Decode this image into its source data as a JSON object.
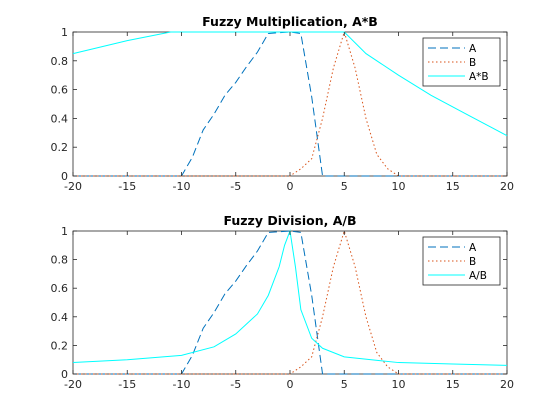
{
  "chart_data": [
    {
      "type": "line",
      "title": "Fuzzy Multiplication, A*B",
      "xlabel": "",
      "ylabel": "",
      "xlim": [
        -20,
        20
      ],
      "ylim": [
        0,
        1
      ],
      "xticks": [
        -20,
        -15,
        -10,
        -5,
        0,
        5,
        10,
        15,
        20
      ],
      "yticks": [
        0,
        0.2,
        0.4,
        0.6,
        0.8,
        1
      ],
      "grid": false,
      "legend_position": "top-right",
      "series": [
        {
          "name": "A",
          "color": "#0072BD",
          "style": "dashed",
          "points": [
            [
              -20,
              0
            ],
            [
              -10,
              0
            ],
            [
              -9,
              0.13
            ],
            [
              -8,
              0.32
            ],
            [
              -7,
              0.43
            ],
            [
              -6,
              0.56
            ],
            [
              -5,
              0.65
            ],
            [
              -4,
              0.76
            ],
            [
              -3,
              0.86
            ],
            [
              -2,
              0.99
            ],
            [
              0,
              1
            ],
            [
              1,
              0.99
            ],
            [
              2,
              0.55
            ],
            [
              3,
              0
            ],
            [
              20,
              0
            ]
          ]
        },
        {
          "name": "B",
          "color": "#D95319",
          "style": "dotted",
          "points": [
            [
              -20,
              0
            ],
            [
              0,
              0
            ],
            [
              1,
              0.05
            ],
            [
              2,
              0.12
            ],
            [
              3,
              0.4
            ],
            [
              4,
              0.75
            ],
            [
              5,
              1
            ],
            [
              6,
              0.75
            ],
            [
              7,
              0.4
            ],
            [
              8,
              0.15
            ],
            [
              9,
              0.05
            ],
            [
              10,
              0
            ],
            [
              20,
              0
            ]
          ]
        },
        {
          "name": "A*B",
          "color": "#00FFFF",
          "style": "solid",
          "points": [
            [
              -20,
              0.85
            ],
            [
              -15,
              0.94
            ],
            [
              -11,
              1
            ],
            [
              0,
              1
            ],
            [
              5,
              1
            ],
            [
              7,
              0.85
            ],
            [
              10,
              0.7
            ],
            [
              13,
              0.56
            ],
            [
              16,
              0.44
            ],
            [
              18,
              0.36
            ],
            [
              20,
              0.28
            ]
          ]
        }
      ]
    },
    {
      "type": "line",
      "title": "Fuzzy Division, A/B",
      "xlabel": "",
      "ylabel": "",
      "xlim": [
        -20,
        20
      ],
      "ylim": [
        0,
        1
      ],
      "xticks": [
        -20,
        -15,
        -10,
        -5,
        0,
        5,
        10,
        15,
        20
      ],
      "yticks": [
        0,
        0.2,
        0.4,
        0.6,
        0.8,
        1
      ],
      "grid": false,
      "legend_position": "top-right",
      "series": [
        {
          "name": "A",
          "color": "#0072BD",
          "style": "dashed",
          "points": [
            [
              -20,
              0
            ],
            [
              -10,
              0
            ],
            [
              -9,
              0.13
            ],
            [
              -8,
              0.32
            ],
            [
              -7,
              0.43
            ],
            [
              -6,
              0.56
            ],
            [
              -5,
              0.65
            ],
            [
              -4,
              0.76
            ],
            [
              -3,
              0.86
            ],
            [
              -2,
              0.99
            ],
            [
              0,
              1
            ],
            [
              1,
              0.99
            ],
            [
              2,
              0.55
            ],
            [
              3,
              0
            ],
            [
              20,
              0
            ]
          ]
        },
        {
          "name": "B",
          "color": "#D95319",
          "style": "dotted",
          "points": [
            [
              -20,
              0
            ],
            [
              0,
              0
            ],
            [
              1,
              0.05
            ],
            [
              2,
              0.12
            ],
            [
              3,
              0.4
            ],
            [
              4,
              0.75
            ],
            [
              5,
              1
            ],
            [
              6,
              0.75
            ],
            [
              7,
              0.4
            ],
            [
              8,
              0.15
            ],
            [
              9,
              0.05
            ],
            [
              10,
              0
            ],
            [
              20,
              0
            ]
          ]
        },
        {
          "name": "A/B",
          "color": "#00FFFF",
          "style": "solid",
          "points": [
            [
              -20,
              0.08
            ],
            [
              -15,
              0.1
            ],
            [
              -10,
              0.13
            ],
            [
              -7,
              0.19
            ],
            [
              -5,
              0.28
            ],
            [
              -3,
              0.42
            ],
            [
              -2,
              0.55
            ],
            [
              -1,
              0.75
            ],
            [
              -0.5,
              0.9
            ],
            [
              0,
              1
            ],
            [
              0.5,
              0.75
            ],
            [
              1,
              0.45
            ],
            [
              2,
              0.25
            ],
            [
              3,
              0.18
            ],
            [
              5,
              0.12
            ],
            [
              10,
              0.08
            ],
            [
              15,
              0.07
            ],
            [
              20,
              0.06
            ]
          ]
        }
      ]
    }
  ]
}
